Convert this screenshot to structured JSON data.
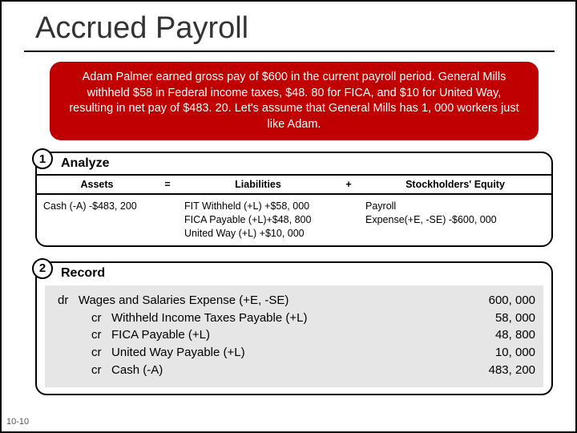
{
  "title": "Accrued Payroll",
  "scenario": "Adam Palmer earned gross pay of $600 in the current payroll period. General Mills withheld $58 in Federal income taxes, $48. 80 for FICA, and $10 for United Way, resulting in net pay of  $483. 20.  Let's assume that General Mills has 1, 000 workers just like Adam.",
  "step1": {
    "num": "1",
    "label": "Analyze",
    "headers": {
      "assets": "Assets",
      "eq": "=",
      "liab": "Liabilities",
      "plus": "+",
      "se": "Stockholders' Equity"
    },
    "row": {
      "assets": "Cash (-A)  -$483, 200",
      "liab_l1": "FIT Withheld (+L)  +$58, 000",
      "liab_l2": "FICA Payable (+L)+$48, 800",
      "liab_l3": "United Way (+L)  +$10, 000",
      "se_l1": "Payroll",
      "se_l2": "Expense(+E, -SE)  -$600, 000"
    }
  },
  "step2": {
    "num": "2",
    "label": "Record",
    "entries": [
      {
        "prefix": "dr",
        "desc": "Wages and Salaries Expense (+E, -SE)",
        "amt": "600, 000",
        "indent": false
      },
      {
        "prefix": "cr",
        "desc": "Withheld Income Taxes Payable (+L)",
        "amt": "58, 000",
        "indent": true
      },
      {
        "prefix": "cr",
        "desc": "FICA Payable (+L)",
        "amt": "48, 800",
        "indent": true
      },
      {
        "prefix": "cr",
        "desc": "United Way Payable (+L)",
        "amt": "10, 000",
        "indent": true
      },
      {
        "prefix": "cr",
        "desc": "Cash (-A)",
        "amt": "483, 200",
        "indent": true
      }
    ]
  },
  "slide_number": "10-10",
  "colors": {
    "scenario_bg": "#c00000",
    "scenario_text": "#ffffff",
    "record_bg": "#e6e6e6"
  }
}
